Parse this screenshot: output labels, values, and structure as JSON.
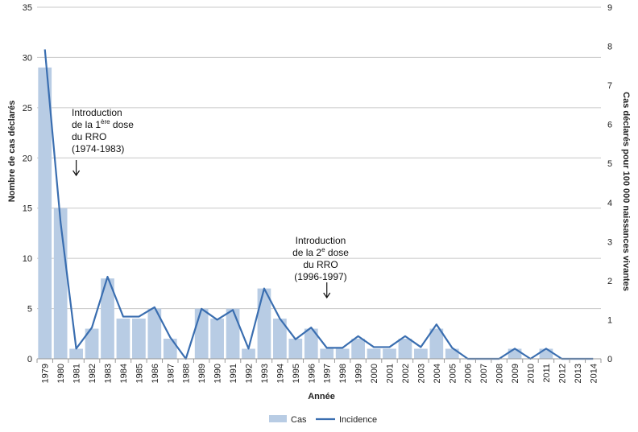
{
  "chart_data": {
    "type": "bar+line",
    "xlabel": "Année",
    "ylabel_left": "Nombre de cas déclarés",
    "ylabel_right": "Cas déclarés pour 100 000 naissances vivantes",
    "ylim_left": [
      0,
      35
    ],
    "yticks_left": [
      0,
      5,
      10,
      15,
      20,
      25,
      30,
      35
    ],
    "ylim_right": [
      0,
      9
    ],
    "yticks_right": [
      0,
      1,
      2,
      3,
      4,
      5,
      6,
      7,
      8,
      9
    ],
    "grid": true,
    "legend_position": "bottom",
    "categories": [
      "1979",
      "1980",
      "1981",
      "1982",
      "1983",
      "1984",
      "1985",
      "1986",
      "1987",
      "1988",
      "1989",
      "1990",
      "1991",
      "1992",
      "1993",
      "1994",
      "1995",
      "1996",
      "1997",
      "1998",
      "1999",
      "2000",
      "2001",
      "2002",
      "2003",
      "2004",
      "2005",
      "2006",
      "2007",
      "2008",
      "2009",
      "2010",
      "2011",
      "2012",
      "2013",
      "2014"
    ],
    "series": [
      {
        "name": "Cas",
        "type": "bar",
        "axis": "left",
        "color": "#b8cce4",
        "values": [
          29,
          15,
          1,
          3,
          8,
          4,
          4,
          5,
          2,
          0,
          5,
          4,
          5,
          1,
          7,
          4,
          2,
          3,
          1,
          1,
          2,
          1,
          1,
          2,
          1,
          3,
          1,
          0,
          0,
          0,
          1,
          0,
          1,
          0,
          0,
          0
        ]
      },
      {
        "name": "Incidence",
        "type": "line",
        "axis": "right",
        "color": "#3a6eb0",
        "values": [
          7.92,
          3.5,
          0.26,
          0.8,
          2.1,
          1.08,
          1.08,
          1.32,
          0.55,
          0,
          1.28,
          1.0,
          1.25,
          0.26,
          1.8,
          1.03,
          0.5,
          0.8,
          0.28,
          0.28,
          0.58,
          0.3,
          0.3,
          0.58,
          0.3,
          0.88,
          0.28,
          0,
          0,
          0,
          0.26,
          0,
          0.26,
          0,
          0,
          0
        ]
      }
    ],
    "annotations": [
      {
        "lines": [
          {
            "text": "Introduction"
          },
          {
            "text": "de la 1",
            "sup": "ère",
            "after": " dose"
          },
          {
            "text": "du RRO"
          },
          {
            "text": "(1974-1983)"
          }
        ],
        "arrow_at": "1981"
      },
      {
        "lines": [
          {
            "text": "Introduction"
          },
          {
            "text": "de la 2",
            "sup": "e",
            "after": " dose"
          },
          {
            "text": "du RRO"
          },
          {
            "text": "(1996-1997)"
          }
        ],
        "arrow_at": "1997"
      }
    ]
  }
}
